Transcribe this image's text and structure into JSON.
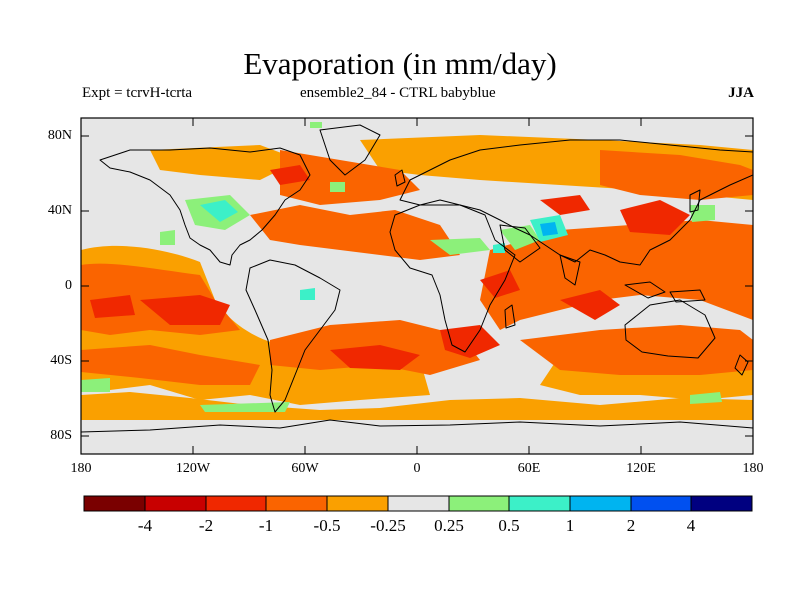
{
  "title": "Evaporation (in mm/day)",
  "left_subtitle": "Expt = tcrvH-tcrta",
  "center_subtitle": "ensemble2_84 - CTRL babyblue",
  "right_subtitle": "JJA",
  "lat_ticks": [
    "80N",
    "40N",
    "0",
    "40S",
    "80S"
  ],
  "lon_ticks": [
    "180",
    "120W",
    "60W",
    "0",
    "60E",
    "120E",
    "180"
  ],
  "colorbar": {
    "colors": [
      "#7a0000",
      "#c80000",
      "#f02800",
      "#fa6400",
      "#faa000",
      "#e6e6e6",
      "#8cf07a",
      "#3cf0c8",
      "#00b4f0",
      "#0050f0",
      "#000080"
    ],
    "labels": [
      "-4",
      "-2",
      "-1",
      "-0.5",
      "-0.25",
      "0.25",
      "0.5",
      "1",
      "2",
      "4"
    ]
  },
  "colors": {
    "background": "#e6e6e6",
    "strong_neg": "#f02800",
    "mid_neg": "#fa6400",
    "weak_neg": "#faa000",
    "weak_pos": "#8cf07a",
    "mid_pos": "#3cf0c8",
    "strong_pos": "#00b4f0",
    "coast": "#000000"
  }
}
